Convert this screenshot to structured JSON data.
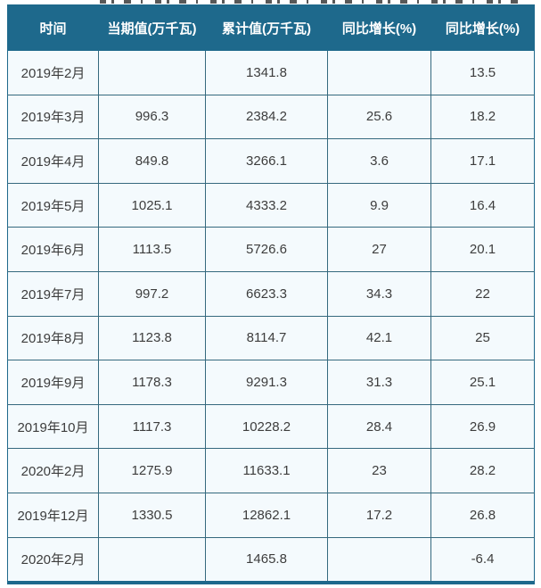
{
  "colors": {
    "header_bg": "#1e698c",
    "header_text": "#ffffff",
    "row_bg": "#f4fafd",
    "border": "#35697e",
    "cell_text": "#3d3d3d"
  },
  "chart_data": {
    "type": "table",
    "columns": [
      "时间",
      "当期值(万千瓦)",
      "累计值(万千瓦)",
      "同比增长(%)",
      "同比增长(%)"
    ],
    "rows": [
      [
        "2019年2月",
        "",
        "1341.8",
        "",
        "13.5"
      ],
      [
        "2019年3月",
        "996.3",
        "2384.2",
        "25.6",
        "18.2"
      ],
      [
        "2019年4月",
        "849.8",
        "3266.1",
        "3.6",
        "17.1"
      ],
      [
        "2019年5月",
        "1025.1",
        "4333.2",
        "9.9",
        "16.4"
      ],
      [
        "2019年6月",
        "1113.5",
        "5726.6",
        "27",
        "20.1"
      ],
      [
        "2019年7月",
        "997.2",
        "6623.3",
        "34.3",
        "22"
      ],
      [
        "2019年8月",
        "1123.8",
        "8114.7",
        "42.1",
        "25"
      ],
      [
        "2019年9月",
        "1178.3",
        "9291.3",
        "31.3",
        "25.1"
      ],
      [
        "2019年10月",
        "1117.3",
        "10228.2",
        "28.4",
        "26.9"
      ],
      [
        "2020年2月",
        "1275.9",
        "11633.1",
        "23",
        "28.2"
      ],
      [
        "2019年12月",
        "1330.5",
        "12862.1",
        "17.2",
        "26.8"
      ],
      [
        "2020年2月",
        "",
        "1465.8",
        "",
        "-6.4"
      ]
    ]
  }
}
